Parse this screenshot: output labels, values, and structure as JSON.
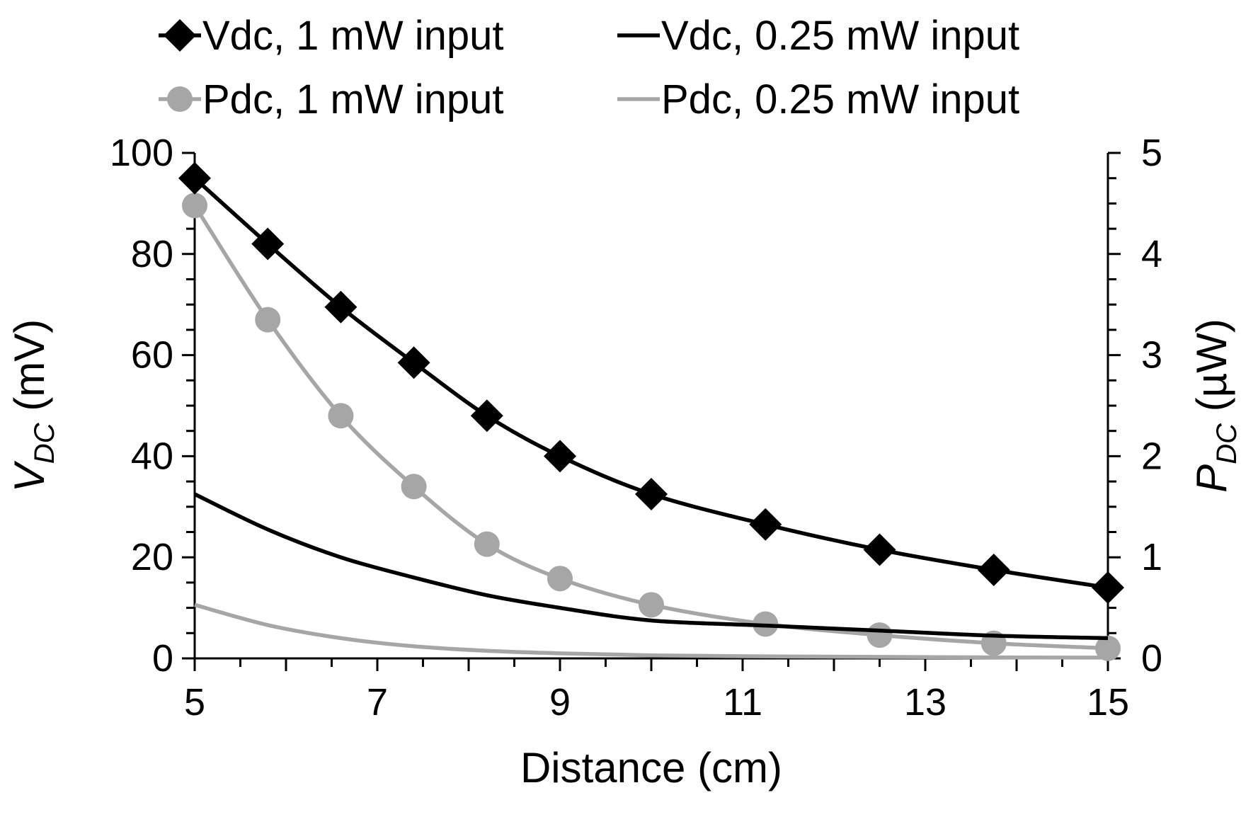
{
  "chart_data": {
    "type": "line",
    "title": "",
    "xlabel": "Distance (cm)",
    "ylabel": {
      "main": "V",
      "sub": "DC",
      "unit": " (mV)"
    },
    "y2label": {
      "main": "P",
      "sub": "DC",
      "unit": " (µW)"
    },
    "xlim": [
      5,
      15
    ],
    "ylim": [
      0,
      100
    ],
    "y2lim": [
      0,
      5
    ],
    "x_ticks": [
      5,
      7,
      9,
      11,
      13,
      15
    ],
    "y_ticks": [
      0,
      20,
      40,
      60,
      80,
      100
    ],
    "y2_ticks": [
      0,
      1,
      2,
      3,
      4,
      5
    ],
    "grid": false,
    "legend_position": "top",
    "series": [
      {
        "name": "Vdc, 1 mW input",
        "axis": "left",
        "color": "#000000",
        "marker": "diamond",
        "x": [
          5,
          5.8,
          6.6,
          7.4,
          8.2,
          9,
          10,
          11.25,
          12.5,
          13.75,
          15
        ],
        "values": [
          95,
          82,
          69.5,
          58.5,
          48,
          40,
          32.5,
          26.5,
          21.5,
          17.5,
          14
        ]
      },
      {
        "name": "Vdc, 0.25 mW input",
        "axis": "left",
        "color": "#000000",
        "marker": "none",
        "x": [
          5,
          5.8,
          6.6,
          7.4,
          8.2,
          9,
          10,
          11.25,
          12.5,
          13.75,
          15
        ],
        "values": [
          32.5,
          25.5,
          20,
          16,
          12.5,
          10,
          7.5,
          6.5,
          5.5,
          4.5,
          4
        ]
      },
      {
        "name": "Pdc, 1 mW input",
        "axis": "right",
        "color": "#a6a6a6",
        "marker": "circle",
        "x": [
          5,
          5.8,
          6.6,
          7.4,
          8.2,
          9,
          10,
          11.25,
          12.5,
          13.75,
          15
        ],
        "values": [
          4.48,
          3.35,
          2.4,
          1.7,
          1.13,
          0.79,
          0.53,
          0.34,
          0.23,
          0.15,
          0.1
        ]
      },
      {
        "name": "Pdc, 0.25 mW input",
        "axis": "right",
        "color": "#a6a6a6",
        "marker": "none",
        "x": [
          5,
          5.8,
          6.6,
          7.4,
          8.2,
          9,
          10,
          11.25,
          12.5,
          13.75,
          15
        ],
        "values": [
          0.53,
          0.33,
          0.2,
          0.12,
          0.075,
          0.05,
          0.03,
          0.02,
          0.015,
          0.01,
          0.008
        ]
      }
    ]
  }
}
